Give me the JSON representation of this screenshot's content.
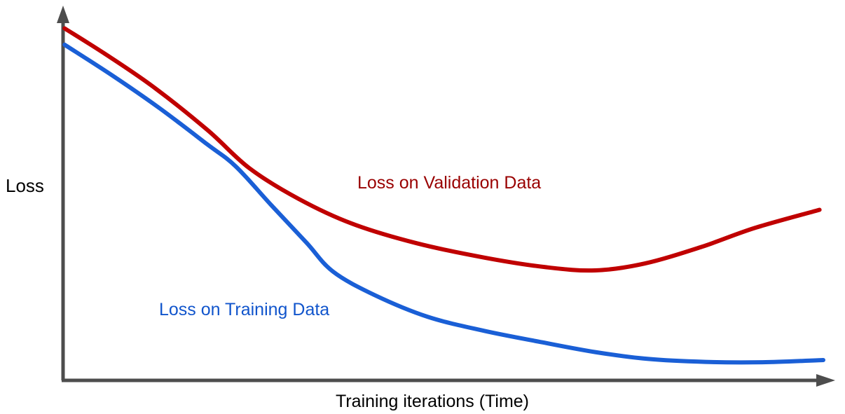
{
  "chart_data": {
    "type": "line",
    "title": "",
    "xlabel": "Training iterations (Time)",
    "ylabel": "Loss",
    "xlim": [
      0,
      100
    ],
    "ylim": [
      0,
      1
    ],
    "grid": false,
    "legend": "inline-labels",
    "axis_style": "sketch axes with arrowheads, no tick marks or tick labels",
    "axis_color": "#4d4d4d",
    "text_color": "#000000",
    "series": [
      {
        "name": "Loss on Validation Data",
        "color": "#c00000",
        "label_color": "#990000",
        "x": [
          0.2,
          5.5,
          11.8,
          19,
          24.5,
          31,
          38,
          46.5,
          55.5,
          63.5,
          70,
          76.5,
          84,
          91,
          99.5
        ],
        "y": [
          0.97,
          0.9,
          0.81,
          0.69,
          0.585,
          0.5,
          0.432,
          0.378,
          0.338,
          0.312,
          0.303,
          0.322,
          0.368,
          0.42,
          0.47
        ]
      },
      {
        "name": "Loss on Training Data",
        "color": "#1a5fd6",
        "label_color": "#1155cc",
        "x": [
          0.2,
          6.5,
          12.7,
          19,
          22.7,
          27.3,
          32,
          35.5,
          41,
          48,
          55.5,
          63,
          70,
          77,
          84.5,
          92,
          100
        ],
        "y": [
          0.925,
          0.84,
          0.75,
          0.65,
          0.59,
          0.485,
          0.38,
          0.3,
          0.235,
          0.175,
          0.136,
          0.105,
          0.078,
          0.059,
          0.051,
          0.05,
          0.056
        ]
      }
    ]
  }
}
